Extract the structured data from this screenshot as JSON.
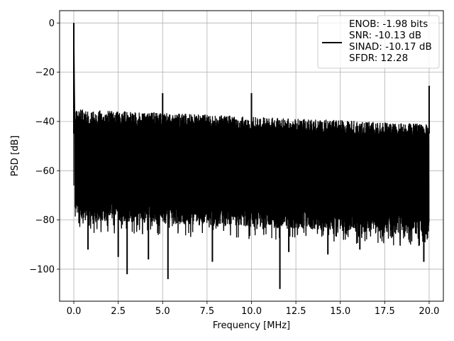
{
  "chart_data": {
    "type": "line",
    "title": "",
    "xlabel": "Frequency [MHz]",
    "ylabel": "PSD [dB]",
    "xlim": [
      -0.8,
      20.8
    ],
    "ylim": [
      -113,
      5
    ],
    "grid": true,
    "xticks": [
      0.0,
      2.5,
      5.0,
      7.5,
      10.0,
      12.5,
      15.0,
      17.5,
      20.0
    ],
    "xtick_labels": [
      "0.0",
      "2.5",
      "5.0",
      "7.5",
      "10.0",
      "12.5",
      "15.0",
      "17.5",
      "20.0"
    ],
    "yticks": [
      0,
      -20,
      -40,
      -60,
      -80,
      -100
    ],
    "ytick_labels": [
      "0",
      "−20",
      "−40",
      "−60",
      "−80",
      "−100"
    ],
    "legend": {
      "position": "top-right",
      "lines": [
        "ENOB: -1.98 bits",
        "SNR: -10.13 dB",
        "SINAD: -10.17 dB",
        "SFDR: 12.28"
      ]
    },
    "series": [
      {
        "color": "#000000",
        "x_range": [
          0,
          20
        ],
        "peaks": [
          {
            "x": 0.0,
            "y": 0
          },
          {
            "x": 5.0,
            "y": -28.5
          },
          {
            "x": 10.0,
            "y": -28.5
          },
          {
            "x": 20.0,
            "y": -25.5
          }
        ],
        "dips": [
          {
            "x": 0.8,
            "y": -92
          },
          {
            "x": 2.5,
            "y": -95
          },
          {
            "x": 3.0,
            "y": -102
          },
          {
            "x": 4.2,
            "y": -96
          },
          {
            "x": 5.3,
            "y": -104
          },
          {
            "x": 7.8,
            "y": -97
          },
          {
            "x": 11.6,
            "y": -108
          },
          {
            "x": 12.1,
            "y": -93
          },
          {
            "x": 14.3,
            "y": -94
          },
          {
            "x": 16.1,
            "y": -92
          },
          {
            "x": 19.7,
            "y": -97
          }
        ],
        "noise_upper": [
          {
            "x": 0.1,
            "y": -35
          },
          {
            "x": 20.0,
            "y": -41
          }
        ],
        "noise_lower": [
          {
            "x": 0.1,
            "y": -80
          },
          {
            "x": 20.0,
            "y": -86
          }
        ]
      }
    ]
  }
}
